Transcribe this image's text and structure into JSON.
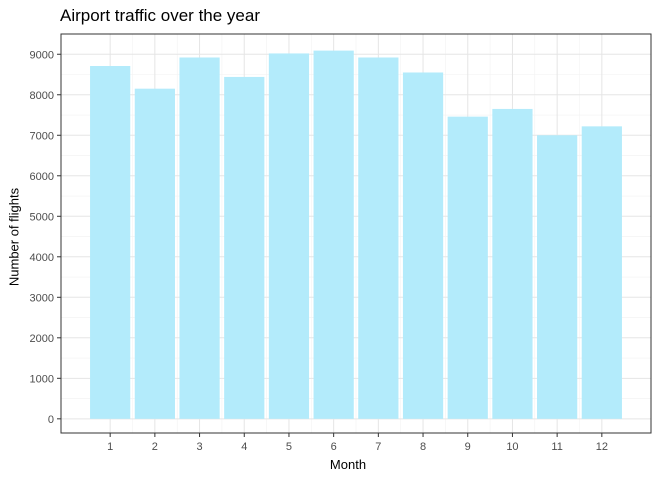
{
  "chart_data": {
    "type": "bar",
    "title": "Airport traffic over the year",
    "xlabel": "Month",
    "ylabel": "Number of flights",
    "categories": [
      "1",
      "2",
      "3",
      "4",
      "5",
      "6",
      "7",
      "8",
      "9",
      "10",
      "11",
      "12"
    ],
    "values": [
      8710,
      8150,
      8920,
      8440,
      9020,
      9090,
      8920,
      8550,
      7460,
      7650,
      7000,
      7220
    ],
    "ylim": [
      -350,
      9500
    ],
    "yticks": [
      0,
      1000,
      2000,
      3000,
      4000,
      5000,
      6000,
      7000,
      8000,
      9000
    ],
    "grid": true,
    "bar_color": "#b3ebfb",
    "legend": "none"
  }
}
